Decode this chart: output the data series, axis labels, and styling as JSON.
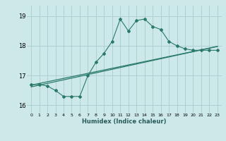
{
  "xlabel": "Humidex (Indice chaleur)",
  "bg_color": "#cce8e8",
  "grid_color": "#aacccc",
  "line_color": "#2a7a6a",
  "xlim": [
    -0.5,
    23.5
  ],
  "ylim": [
    15.75,
    19.35
  ],
  "xticks": [
    0,
    1,
    2,
    3,
    4,
    5,
    6,
    7,
    8,
    9,
    10,
    11,
    12,
    13,
    14,
    15,
    16,
    17,
    18,
    19,
    20,
    21,
    22,
    23
  ],
  "yticks": [
    16,
    17,
    18,
    19
  ],
  "main_x": [
    0,
    1,
    2,
    3,
    4,
    5,
    6,
    7,
    8,
    9,
    10,
    11,
    12,
    13,
    14,
    15,
    16,
    17,
    18,
    19,
    20,
    21,
    22,
    23
  ],
  "main_y": [
    16.7,
    16.7,
    16.65,
    16.5,
    16.3,
    16.3,
    16.3,
    17.0,
    17.45,
    17.75,
    18.15,
    18.9,
    18.5,
    18.85,
    18.9,
    18.65,
    18.55,
    18.15,
    18.0,
    17.9,
    17.85,
    17.85,
    17.85,
    17.85
  ],
  "line2_x": [
    0,
    23
  ],
  "line2_y": [
    16.62,
    17.98
  ],
  "line3_x": [
    0,
    23
  ],
  "line3_y": [
    16.68,
    17.98
  ]
}
